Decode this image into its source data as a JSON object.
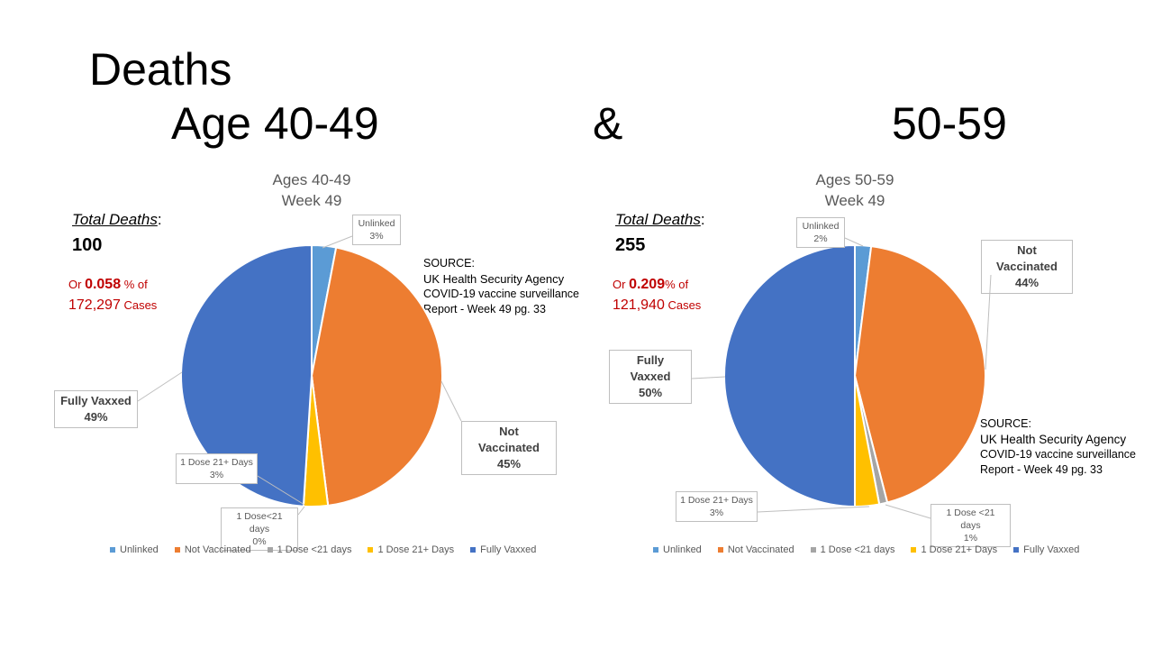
{
  "slide": {
    "title_line1": "Deaths",
    "title_age1": "Age 40-49",
    "title_amp": "&",
    "title_age2": "50-59"
  },
  "colors": {
    "Unlinked": "#5b9bd5",
    "Not Vaccinated": "#ed7d31",
    "1 Dose <21 days": "#a5a5a5",
    "1 Dose 21+ Days": "#ffc000",
    "Fully Vaxxed": "#4472c4"
  },
  "panels": [
    {
      "total_label": "Total Deaths",
      "total_colon": ":",
      "total_value": "100",
      "rate_prefix": "Or ",
      "rate_value": "0.058",
      "rate_suffix": " % of",
      "cases_number": "172,297",
      "cases_word": " Cases",
      "source_title": "SOURCE:",
      "source_line1": " UK Health Security Agency",
      "source_line2": " COVID-19 vaccine surveillance",
      "source_line3": " Report - Week 49   pg. 33",
      "callouts": {
        "unlinked": [
          "Unlinked",
          "3%"
        ],
        "not_vaccinated": [
          "Not Vaccinated",
          "45%"
        ],
        "dose_lt21": [
          "1 Dose<21 days",
          "0%"
        ],
        "dose_21plus": [
          "1 Dose 21+ Days",
          "3%"
        ],
        "fully_vaxxed": [
          "Fully Vaxxed",
          "49%"
        ]
      }
    },
    {
      "total_label": "Total Deaths",
      "total_colon": ":",
      "total_value": "255",
      "rate_prefix": "Or ",
      "rate_value": "0.209",
      "rate_suffix": "% of",
      "cases_number": "121,940",
      "cases_word": " Cases",
      "source_title": "SOURCE:",
      "source_line1": " UK Health Security Agency",
      "source_line2": "COVID-19 vaccine surveillance",
      "source_line3": " Report - Week 49   pg. 33",
      "callouts": {
        "unlinked": [
          "Unlinked",
          "2%"
        ],
        "not_vaccinated": [
          "Not Vaccinated",
          "44%"
        ],
        "dose_lt21": [
          "1 Dose <21 days",
          "1%"
        ],
        "dose_21plus": [
          "1 Dose 21+ Days",
          "3%"
        ],
        "fully_vaxxed": [
          "Fully Vaxxed",
          "50%"
        ]
      }
    }
  ],
  "chart_data": [
    {
      "type": "pie",
      "title": "Ages 40-49",
      "subtitle": "Week 49",
      "categories": [
        "Unlinked",
        "Not Vaccinated",
        "1 Dose <21 days",
        "1 Dose 21+ Days",
        "Fully Vaxxed"
      ],
      "values": [
        3,
        45,
        0,
        3,
        49
      ],
      "legend": [
        "Unlinked",
        "Not Vaccinated",
        "1 Dose <21 days",
        "1 Dose 21+ Days",
        "Fully Vaxxed"
      ],
      "legend_position": "bottom"
    },
    {
      "type": "pie",
      "title": "Ages 50-59",
      "subtitle": "Week 49",
      "categories": [
        "Unlinked",
        "Not Vaccinated",
        "1 Dose <21 days",
        "1 Dose 21+ Days",
        "Fully Vaxxed"
      ],
      "values": [
        2,
        44,
        1,
        3,
        50
      ],
      "legend": [
        "Unlinked",
        "Not Vaccinated",
        "1 Dose <21 days",
        "1 Dose 21+ Days",
        "Fully Vaxxed"
      ],
      "legend_position": "bottom"
    }
  ]
}
